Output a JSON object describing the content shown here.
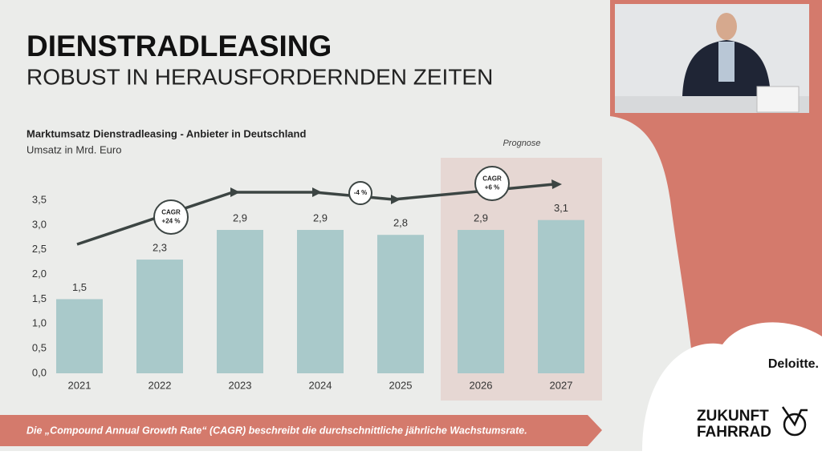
{
  "header": {
    "title": "DIENSTRADLEASING",
    "subtitle": "ROBUST IN HERAUSFORDERNDEN ZEITEN"
  },
  "chart_data": {
    "type": "bar",
    "title": "Marktumsatz Dienstradleasing - Anbieter in Deutschland",
    "subtitle": "Umsatz in Mrd. Euro",
    "categories": [
      "2021",
      "2022",
      "2023",
      "2024",
      "2025",
      "2026",
      "2027"
    ],
    "values": [
      1.5,
      2.3,
      2.9,
      2.9,
      2.8,
      2.9,
      3.1
    ],
    "value_labels": [
      "1,5",
      "2,3",
      "2,9",
      "2,9",
      "2,8",
      "2,9",
      "3,1"
    ],
    "color": "#a9c9ca",
    "ylim": [
      0,
      3.5
    ],
    "yticks": [
      {
        "value": 0,
        "label": "0,0"
      },
      {
        "value": 0.5,
        "label": "0,5"
      },
      {
        "value": 1,
        "label": "1,0"
      },
      {
        "value": 1.5,
        "label": "1,5"
      },
      {
        "value": 2,
        "label": "2,0"
      },
      {
        "value": 2.5,
        "label": "2,5"
      },
      {
        "value": 3,
        "label": "3,0"
      },
      {
        "value": 3.5,
        "label": "3,5"
      }
    ],
    "forecast_label": "Prognose",
    "annotations": [
      {
        "lines": [
          "CAGR",
          "+24 %"
        ]
      },
      {
        "lines": [
          "-4 %"
        ]
      },
      {
        "lines": [
          "CAGR",
          "+6 %"
        ]
      }
    ]
  },
  "footer": {
    "note": "Die „Compound Annual Growth Rate“ (CAGR) beschreibt die durchschnittliche jährliche Wachstumsrate.",
    "brand": "Deloitte.",
    "logo_lines": [
      "ZUKUNFT",
      "FAHRRAD"
    ]
  }
}
